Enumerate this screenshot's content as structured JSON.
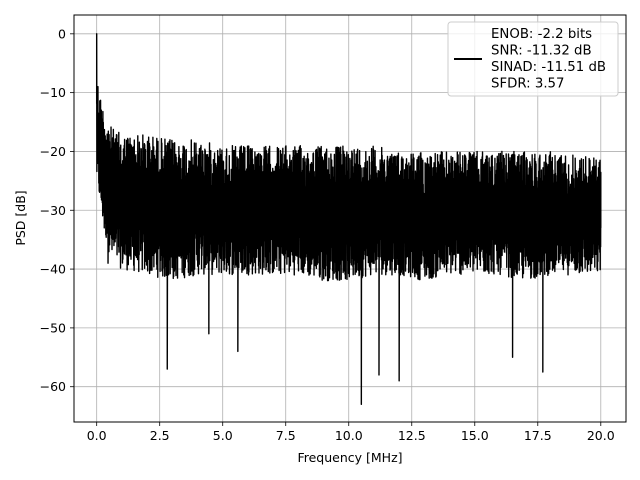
{
  "chart_data": {
    "type": "line",
    "title": "",
    "xlabel": "Frequency [MHz]",
    "ylabel": "PSD [dB]",
    "xlim": [
      -0.9,
      21.0
    ],
    "ylim": [
      -66,
      3.2
    ],
    "x_ticks": [
      0.0,
      2.5,
      5.0,
      7.5,
      10.0,
      12.5,
      15.0,
      17.5,
      20.0
    ],
    "x_tick_labels": [
      "0.0",
      "2.5",
      "5.0",
      "7.5",
      "10.0",
      "12.5",
      "15.0",
      "17.5",
      "20.0"
    ],
    "y_ticks": [
      0,
      -10,
      -20,
      -30,
      -40,
      -50,
      -60
    ],
    "y_tick_labels": [
      "0",
      "−10",
      "−20",
      "−30",
      "−40",
      "−50",
      "−60"
    ],
    "grid": true,
    "legend_position": "top-right",
    "series_color": "#000000",
    "series": [
      {
        "name": "ENOB: -2.2 bits\nSNR: -11.32 dB\nSINAD: -11.51 dB\nSFDR: 3.57",
        "x": [
          0.0,
          0.05,
          0.1,
          0.15,
          0.2,
          0.3,
          0.45,
          0.5,
          0.75,
          1.0,
          1.35,
          1.65,
          2.0,
          2.5,
          2.8,
          3.0,
          3.6,
          4.0,
          4.45,
          4.8,
          5.2,
          5.6,
          6.0,
          6.8,
          7.5,
          8.0,
          8.4,
          8.8,
          9.2,
          9.6,
          10.0,
          10.5,
          11.0,
          11.2,
          11.5,
          12.0,
          12.5,
          13.0,
          13.5,
          14.0,
          14.5,
          15.0,
          15.5,
          16.0,
          16.5,
          17.0,
          17.5,
          17.7,
          18.0,
          18.5,
          19.0,
          19.5,
          20.0
        ],
        "y": [
          0.0,
          -9.0,
          -16.0,
          -18.0,
          -25.0,
          -33.0,
          -39.0,
          -27.0,
          -31.0,
          -29.0,
          -30.0,
          -28.0,
          -31.0,
          -30.0,
          -57.0,
          -29.0,
          -30.0,
          -31.0,
          -51.0,
          -28.0,
          -30.0,
          -54.0,
          -31.0,
          -29.0,
          -30.0,
          -30.0,
          -31.0,
          -29.0,
          -32.0,
          -30.0,
          -31.0,
          -63.0,
          -29.0,
          -58.0,
          -30.0,
          -59.0,
          -31.0,
          -29.0,
          -30.0,
          -31.0,
          -30.0,
          -29.0,
          -31.0,
          -30.0,
          -55.0,
          -31.0,
          -30.0,
          -57.5,
          -30.0,
          -31.0,
          -29.0,
          -30.0,
          -33.0
        ],
        "envelope_upper": [
          -8,
          -13,
          -16,
          -17,
          -17,
          -18,
          -18,
          -19,
          -19,
          -19,
          -19,
          -19,
          -19,
          -19,
          -20,
          -20,
          -20,
          -20,
          -20,
          -20,
          -20,
          -21
        ],
        "envelope_lower": [
          -25,
          -34,
          -39,
          -40,
          -41,
          -42,
          -41,
          -41,
          -41,
          -41,
          -41,
          -42,
          -42,
          -41,
          -41,
          -42,
          -41,
          -41,
          -41,
          -42,
          -41,
          -41
        ],
        "envelope_x": [
          0.0,
          0.3,
          0.6,
          1.0,
          2.0,
          3.0,
          4.0,
          5.0,
          6.0,
          7.0,
          8.0,
          9.0,
          10.0,
          11.0,
          12.0,
          13.0,
          14.0,
          15.0,
          16.0,
          17.0,
          18.0,
          20.0
        ]
      }
    ]
  }
}
